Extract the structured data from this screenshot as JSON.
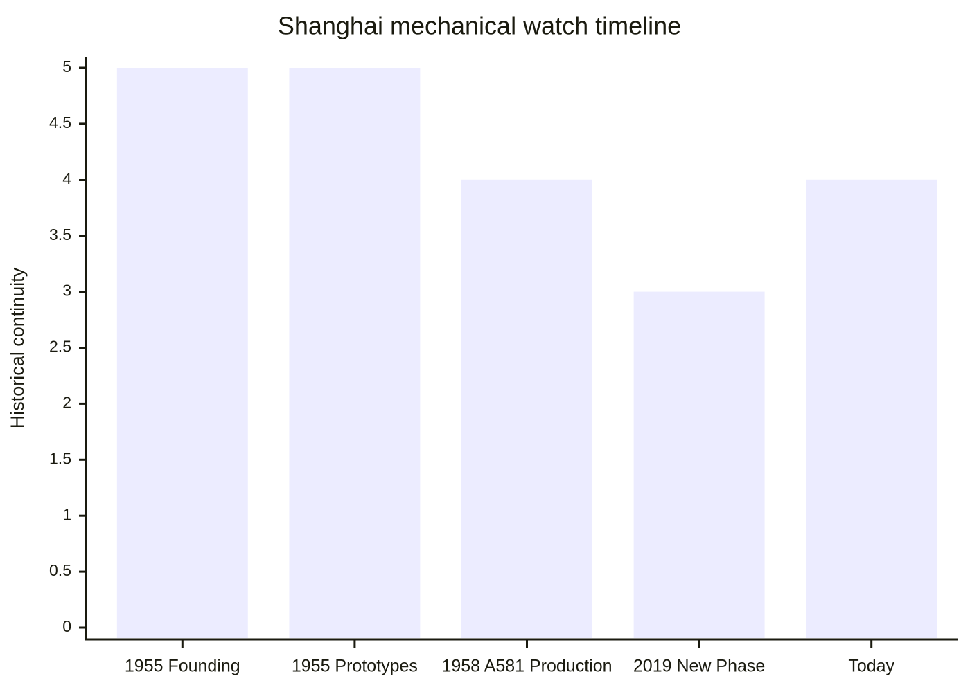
{
  "chart_data": {
    "type": "bar",
    "title": "Shanghai mechanical watch timeline",
    "y_label": "Historical continuity",
    "categories": [
      "1955 Founding",
      "1955 Prototypes",
      "1958 A581 Production",
      "2019 New Phase",
      "Today"
    ],
    "values": [
      5,
      5,
      4,
      3,
      4
    ],
    "color": "#ececff",
    "ylim": [
      0,
      5
    ],
    "yticks": [
      0,
      0.5,
      1,
      1.5,
      2,
      2.5,
      3,
      3.5,
      4,
      4.5,
      5
    ],
    "grid": false
  }
}
